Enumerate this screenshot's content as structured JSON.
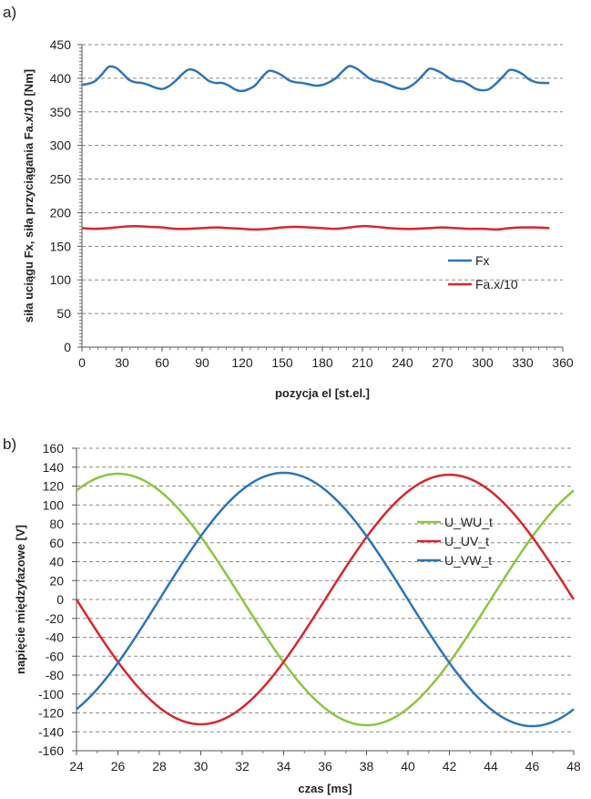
{
  "panels": [
    {
      "label": "a)"
    },
    {
      "label": "b)"
    }
  ],
  "chart_data": [
    {
      "type": "line",
      "xlabel": "pozycja el [st.el.]",
      "ylabel": "siła uciągu Fx, siła przyciągania Fa.x/10  [Nm]",
      "xlim": [
        0,
        360
      ],
      "ylim": [
        0,
        450
      ],
      "xticks": [
        0,
        30,
        60,
        90,
        120,
        150,
        180,
        210,
        240,
        270,
        300,
        330,
        360
      ],
      "yticks": [
        0,
        50,
        100,
        150,
        200,
        250,
        300,
        350,
        400,
        450
      ],
      "grid": "horizontal dashed",
      "legend_position": "right",
      "series": [
        {
          "name": "Fx",
          "color": "#2e75b6",
          "x": [
            0,
            5,
            10,
            15,
            20,
            25,
            30,
            35,
            40,
            45,
            50,
            55,
            60,
            65,
            70,
            75,
            80,
            85,
            90,
            95,
            100,
            105,
            110,
            115,
            120,
            125,
            130,
            135,
            140,
            145,
            150,
            155,
            160,
            165,
            170,
            175,
            180,
            185,
            190,
            195,
            200,
            205,
            210,
            215,
            220,
            225,
            230,
            235,
            240,
            245,
            250,
            255,
            260,
            265,
            270,
            275,
            280,
            285,
            290,
            295,
            300,
            305,
            310,
            315,
            320,
            325,
            330,
            335,
            340,
            345,
            350
          ],
          "y": [
            390,
            392,
            396,
            406,
            417,
            416,
            408,
            398,
            394,
            393,
            390,
            386,
            384,
            388,
            396,
            406,
            413,
            411,
            404,
            396,
            393,
            393,
            389,
            383,
            381,
            384,
            390,
            402,
            411,
            409,
            404,
            397,
            394,
            393,
            391,
            389,
            390,
            394,
            400,
            410,
            418,
            415,
            408,
            400,
            396,
            394,
            390,
            386,
            384,
            387,
            394,
            404,
            414,
            412,
            407,
            400,
            396,
            395,
            390,
            384,
            382,
            384,
            392,
            402,
            412,
            411,
            406,
            398,
            394,
            393,
            393
          ]
        },
        {
          "name": "Fa.x/10",
          "color": "#d9262c",
          "x": [
            0,
            10,
            20,
            30,
            40,
            50,
            60,
            70,
            80,
            90,
            100,
            110,
            120,
            130,
            140,
            150,
            160,
            170,
            180,
            190,
            200,
            210,
            220,
            230,
            240,
            250,
            260,
            270,
            280,
            290,
            300,
            310,
            320,
            330,
            340,
            350
          ],
          "y": [
            177,
            176,
            177,
            179,
            180,
            179,
            178,
            176,
            176,
            177,
            178,
            177,
            176,
            175,
            176,
            178,
            179,
            178,
            177,
            176,
            178,
            180,
            179,
            177,
            176,
            176,
            177,
            178,
            177,
            176,
            176,
            175,
            177,
            178,
            178,
            177
          ]
        }
      ]
    },
    {
      "type": "line",
      "xlabel": "czas  [ms]",
      "ylabel": "napięcie międzyfazowe  [V]",
      "xlim": [
        24,
        48
      ],
      "ylim": [
        -160,
        160
      ],
      "xticks": [
        24,
        26,
        28,
        30,
        32,
        34,
        36,
        38,
        40,
        42,
        44,
        46,
        48
      ],
      "yticks": [
        -160,
        -140,
        -120,
        -100,
        -80,
        -60,
        -40,
        -20,
        0,
        20,
        40,
        60,
        80,
        100,
        120,
        140,
        160
      ],
      "grid": "horizontal dashed",
      "legend_position": "right",
      "series": [
        {
          "name": "U_WU_t",
          "color": "#8cc63f",
          "amplitude": 133,
          "period_ms": 24,
          "peak_at_ms": 26
        },
        {
          "name": "U_UV_t",
          "color": "#d9262c",
          "amplitude": 132,
          "period_ms": 24,
          "peak_at_ms": 42
        },
        {
          "name": "U_VW_t",
          "color": "#2e75b6",
          "amplitude": 134,
          "period_ms": 24,
          "peak_at_ms": 34
        }
      ]
    }
  ]
}
